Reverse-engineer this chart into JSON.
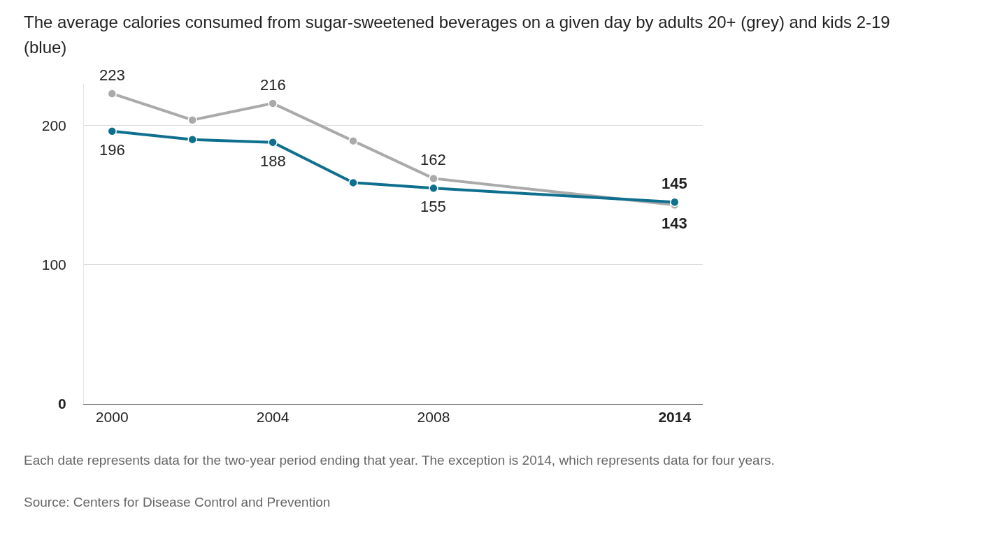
{
  "chart_data": {
    "type": "line",
    "title": "The average calories consumed from sugar-sweetened beverages on a given day by adults 20+ (grey) and kids 2-19 (blue)",
    "x": [
      2000,
      2002,
      2004,
      2006,
      2008,
      2014
    ],
    "series": [
      {
        "color": "#aaaaaa",
        "values": [
          223,
          204,
          216,
          189,
          162,
          143
        ],
        "value_labels": [
          "223",
          null,
          "216",
          null,
          "162",
          "143"
        ]
      },
      {
        "color": "#0e6f8e",
        "values": [
          196,
          190,
          188,
          159,
          155,
          145
        ],
        "value_labels": [
          "196",
          null,
          "188",
          null,
          "155",
          "145"
        ]
      }
    ],
    "xlim": [
      1999.3,
      2014.7
    ],
    "xticks": [
      2000,
      2004,
      2008,
      2014
    ],
    "ylim": [
      0,
      230
    ],
    "yticks": [
      0,
      100,
      200
    ],
    "grid": "y",
    "marker": "circle",
    "line_style": "solid",
    "annotations": [
      "Each date represents data for the two-year period ending that year. The exception is 2014, which represents data for four years.",
      "Source: Centers for Disease Control and Prevention"
    ]
  }
}
